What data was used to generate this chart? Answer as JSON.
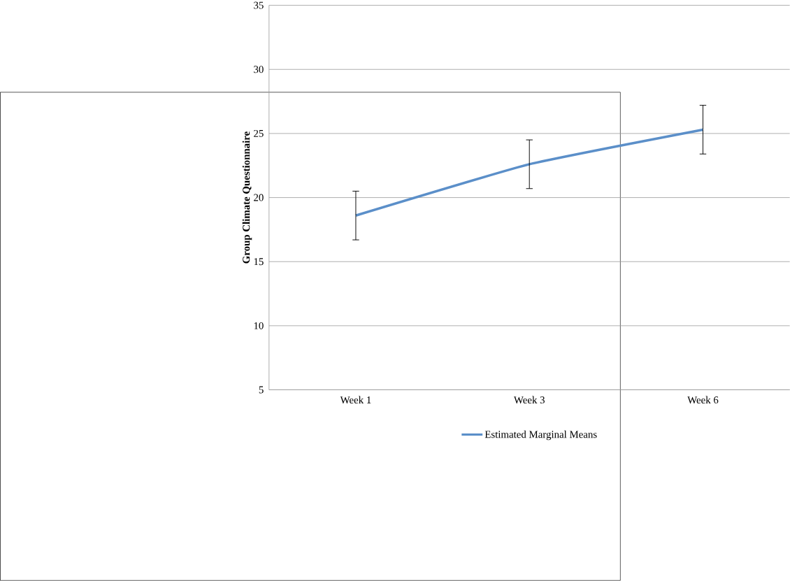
{
  "chart_data": {
    "type": "line",
    "ylabel": "Group Climate Questionnaire",
    "categories": [
      "Week 1",
      "Week 3",
      "Week 6"
    ],
    "series": [
      {
        "name": "Estimated Marginal Means",
        "color": "#5b8fc9",
        "values": [
          18.6,
          22.6,
          25.3
        ],
        "errors": [
          1.9,
          1.9,
          1.9
        ]
      }
    ],
    "ylim": [
      5,
      35
    ],
    "yticks": [
      5,
      10,
      15,
      20,
      25,
      30,
      35
    ],
    "grid": "y",
    "legend": "bottom"
  }
}
